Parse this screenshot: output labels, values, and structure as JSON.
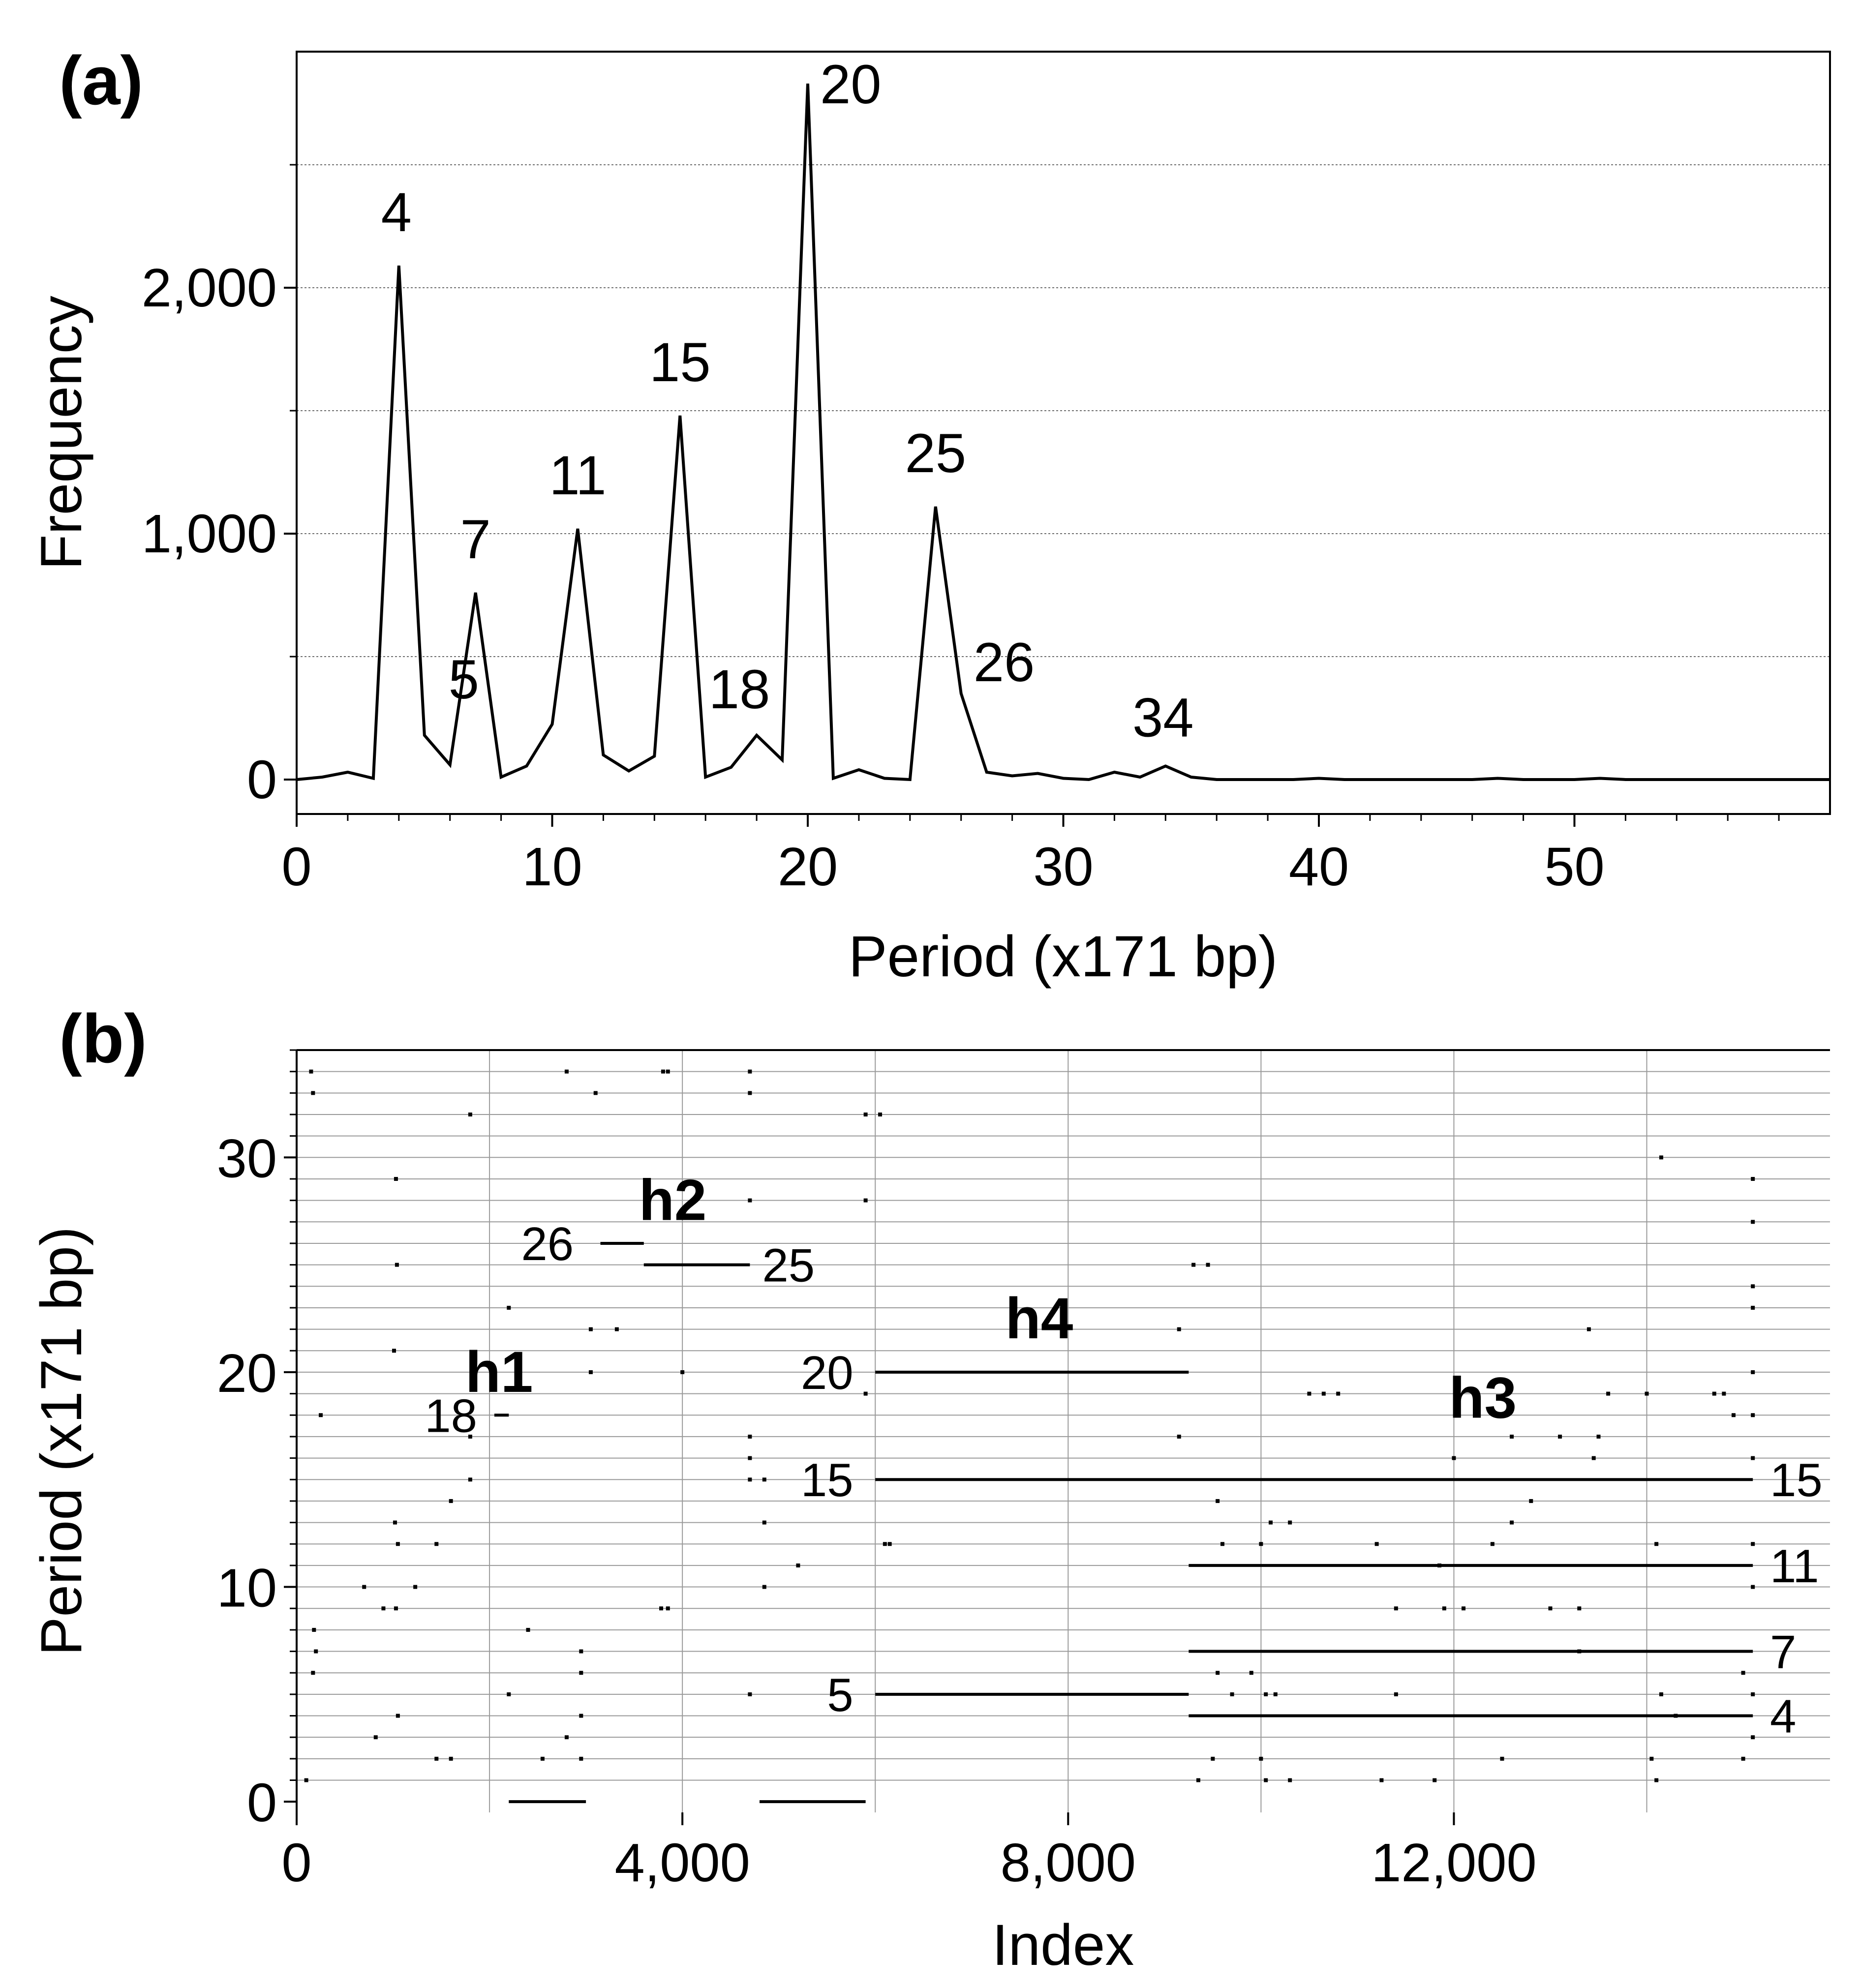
{
  "chart_data": [
    {
      "type": "line",
      "panel_label": "(a)",
      "xlabel": "Period (x171 bp)",
      "ylabel": "Frequency",
      "xlim": [
        0,
        60
      ],
      "ylim": [
        -140,
        2960
      ],
      "xticks": [
        0,
        10,
        20,
        30,
        40,
        50
      ],
      "xtick_labels": [
        "0",
        "10",
        "20",
        "30",
        "40",
        "50"
      ],
      "yticks": [
        0,
        1000,
        2000
      ],
      "ytick_labels": [
        "0",
        "1,000",
        "2,000"
      ],
      "gridlines_y": [
        500,
        1000,
        1500,
        2000,
        2500
      ],
      "x": [
        0,
        1,
        2,
        3,
        4,
        5,
        6,
        7,
        8,
        9,
        10,
        11,
        12,
        13,
        14,
        15,
        16,
        17,
        18,
        19,
        20,
        21,
        22,
        23,
        24,
        25,
        26,
        27,
        28,
        29,
        30,
        31,
        32,
        33,
        34,
        35,
        36,
        37,
        38,
        39,
        40,
        41,
        42,
        43,
        44,
        45,
        46,
        47,
        48,
        49,
        50,
        51,
        52,
        53,
        54,
        55,
        56,
        57,
        58,
        59,
        60
      ],
      "values": [
        0,
        10,
        30,
        5,
        2090,
        180,
        60,
        760,
        10,
        55,
        225,
        1020,
        100,
        35,
        95,
        1480,
        10,
        50,
        180,
        80,
        2830,
        5,
        40,
        5,
        0,
        1110,
        350,
        30,
        15,
        25,
        5,
        0,
        30,
        10,
        55,
        10,
        0,
        0,
        0,
        0,
        5,
        0,
        0,
        0,
        0,
        0,
        0,
        5,
        0,
        0,
        0,
        5,
        0,
        0,
        0,
        0,
        0,
        0,
        0,
        0,
        0
      ],
      "peak_labels": [
        {
          "x": 4,
          "y": 2090,
          "text": "4"
        },
        {
          "x": 5,
          "y": 180,
          "text": "5"
        },
        {
          "x": 7,
          "y": 760,
          "text": "7"
        },
        {
          "x": 11,
          "y": 1020,
          "text": "11"
        },
        {
          "x": 15,
          "y": 1480,
          "text": "15"
        },
        {
          "x": 18,
          "y": 180,
          "text": "18"
        },
        {
          "x": 20,
          "y": 2830,
          "text": "20"
        },
        {
          "x": 25,
          "y": 1110,
          "text": "25"
        },
        {
          "x": 26,
          "y": 350,
          "text": "26"
        },
        {
          "x": 34,
          "y": 55,
          "text": "34"
        }
      ]
    },
    {
      "type": "scatter",
      "panel_label": "(b)",
      "xlabel": "Index",
      "ylabel": "Period (x171 bp)",
      "xlim": [
        0,
        15900
      ],
      "ylim": [
        -0.5,
        35
      ],
      "xticks": [
        0,
        4000,
        8000,
        12000
      ],
      "xtick_labels": [
        "0",
        "4,000",
        "8,000",
        "12,000"
      ],
      "yticks": [
        0,
        10,
        20,
        30
      ],
      "ytick_labels": [
        "0",
        "10",
        "20",
        "30"
      ],
      "vertical_gridlines_x": [
        2000,
        4000,
        6000,
        8000,
        10000,
        12000,
        14000
      ],
      "horizontal_gridlines_y": [
        1,
        2,
        3,
        4,
        5,
        6,
        7,
        8,
        9,
        10,
        11,
        12,
        13,
        14,
        15,
        16,
        17,
        18,
        19,
        20,
        21,
        22,
        23,
        24,
        25,
        26,
        27,
        28,
        29,
        30,
        31,
        32,
        33,
        34,
        35
      ],
      "segments": [
        {
          "period": 20,
          "x_start": 6000,
          "x_end": 9250
        },
        {
          "period": 15,
          "x_start": 6000,
          "x_end": 15100
        },
        {
          "period": 5,
          "x_start": 6000,
          "x_end": 9250
        },
        {
          "period": 11,
          "x_start": 9250,
          "x_end": 15100
        },
        {
          "period": 7,
          "x_start": 9250,
          "x_end": 15100
        },
        {
          "period": 4,
          "x_start": 9250,
          "x_end": 15100
        },
        {
          "period": 0,
          "x_start": 2200,
          "x_end": 3000
        },
        {
          "period": 0,
          "x_start": 4800,
          "x_end": 5900
        },
        {
          "period": 25,
          "x_start": 3600,
          "x_end": 4700
        },
        {
          "period": 26,
          "x_start": 3150,
          "x_end": 3600
        },
        {
          "period": 18,
          "x_start": 2050,
          "x_end": 2200
        }
      ],
      "row_labels": [
        {
          "period": 26,
          "x": 3000,
          "text": "26",
          "side": "left"
        },
        {
          "period": 25,
          "x": 4700,
          "text": "25",
          "side": "right"
        },
        {
          "period": 18,
          "x": 2000,
          "text": "18",
          "side": "left"
        },
        {
          "period": 20,
          "x": 5900,
          "text": "20",
          "side": "left"
        },
        {
          "period": 15,
          "x": 5900,
          "text": "15",
          "side": "left"
        },
        {
          "period": 5,
          "x": 5900,
          "text": "5",
          "side": "left"
        },
        {
          "period": 15,
          "x": 15150,
          "text": "15",
          "side": "right"
        },
        {
          "period": 11,
          "x": 15150,
          "text": "11",
          "side": "right"
        },
        {
          "period": 7,
          "x": 15150,
          "text": "7",
          "side": "right"
        },
        {
          "period": 4,
          "x": 15150,
          "text": "4",
          "side": "right"
        }
      ],
      "region_labels": [
        {
          "text": "h1",
          "x": 2100,
          "y": 20
        },
        {
          "text": "h2",
          "x": 3900,
          "y": 28
        },
        {
          "text": "h4",
          "x": 7700,
          "y": 22.5
        },
        {
          "text": "h3",
          "x": 12300,
          "y": 18.8
        }
      ],
      "scatter_points": [
        [
          150,
          34
        ],
        [
          170,
          33
        ],
        [
          180,
          8
        ],
        [
          200,
          7
        ],
        [
          170,
          6
        ],
        [
          250,
          18
        ],
        [
          100,
          1
        ],
        [
          1030,
          29
        ],
        [
          1040,
          25
        ],
        [
          1010,
          21
        ],
        [
          1020,
          13
        ],
        [
          1050,
          12
        ],
        [
          1030,
          9
        ],
        [
          1050,
          4
        ],
        [
          900,
          9
        ],
        [
          820,
          3
        ],
        [
          700,
          10
        ],
        [
          1230,
          10
        ],
        [
          1450,
          12
        ],
        [
          1450,
          2
        ],
        [
          1600,
          2
        ],
        [
          1600,
          14
        ],
        [
          1800,
          32
        ],
        [
          1800,
          15
        ],
        [
          1800,
          17
        ],
        [
          2200,
          23
        ],
        [
          2200,
          5
        ],
        [
          2400,
          8
        ],
        [
          2550,
          2
        ],
        [
          2800,
          3
        ],
        [
          2950,
          7
        ],
        [
          2950,
          6
        ],
        [
          2950,
          4
        ],
        [
          2950,
          2
        ],
        [
          2800,
          34
        ],
        [
          3050,
          20
        ],
        [
          3050,
          22
        ],
        [
          3100,
          33
        ],
        [
          3320,
          22
        ],
        [
          3800,
          34
        ],
        [
          3850,
          34
        ],
        [
          3780,
          9
        ],
        [
          3850,
          9
        ],
        [
          4000,
          20
        ],
        [
          4700,
          34
        ],
        [
          4700,
          33
        ],
        [
          4700,
          28
        ],
        [
          4700,
          17
        ],
        [
          4700,
          16
        ],
        [
          4700,
          15
        ],
        [
          4700,
          5
        ],
        [
          4850,
          15
        ],
        [
          4850,
          10
        ],
        [
          4850,
          13
        ],
        [
          5200,
          11
        ],
        [
          5900,
          28
        ],
        [
          5900,
          19
        ],
        [
          5900,
          32
        ],
        [
          6050,
          32
        ],
        [
          6100,
          12
        ],
        [
          6150,
          12
        ],
        [
          9150,
          22
        ],
        [
          9150,
          17
        ],
        [
          9300,
          25
        ],
        [
          9350,
          1
        ],
        [
          9450,
          25
        ],
        [
          9500,
          2
        ],
        [
          9550,
          6
        ],
        [
          9600,
          12
        ],
        [
          9550,
          14
        ],
        [
          9700,
          5
        ],
        [
          9900,
          6
        ],
        [
          10000,
          2
        ],
        [
          10050,
          5
        ],
        [
          10000,
          12
        ],
        [
          10150,
          5
        ],
        [
          10050,
          1
        ],
        [
          10100,
          13
        ],
        [
          10300,
          1
        ],
        [
          10300,
          13
        ],
        [
          10500,
          19
        ],
        [
          10650,
          19
        ],
        [
          10800,
          19
        ],
        [
          11250,
          1
        ],
        [
          11200,
          12
        ],
        [
          11400,
          5
        ],
        [
          11400,
          9
        ],
        [
          11800,
          1
        ],
        [
          11850,
          11
        ],
        [
          11900,
          9
        ],
        [
          12000,
          16
        ],
        [
          12100,
          9
        ],
        [
          12400,
          12
        ],
        [
          12500,
          2
        ],
        [
          12600,
          17
        ],
        [
          12600,
          13
        ],
        [
          12800,
          14
        ],
        [
          13000,
          9
        ],
        [
          13100,
          17
        ],
        [
          13300,
          7
        ],
        [
          13300,
          9
        ],
        [
          13400,
          22
        ],
        [
          13450,
          16
        ],
        [
          13500,
          17
        ],
        [
          13600,
          19
        ],
        [
          14000,
          19
        ],
        [
          14050,
          2
        ],
        [
          14100,
          1
        ],
        [
          14100,
          12
        ],
        [
          14150,
          5
        ],
        [
          14150,
          30
        ],
        [
          14300,
          4
        ],
        [
          14700,
          19
        ],
        [
          14800,
          19
        ],
        [
          14900,
          18
        ],
        [
          15000,
          6
        ],
        [
          15000,
          2
        ],
        [
          15100,
          29
        ],
        [
          15100,
          27
        ],
        [
          15100,
          24
        ],
        [
          15100,
          23
        ],
        [
          15100,
          20
        ],
        [
          15100,
          18
        ],
        [
          15100,
          16
        ],
        [
          15100,
          12
        ],
        [
          15100,
          10
        ],
        [
          15100,
          5
        ],
        [
          15100,
          3
        ]
      ]
    }
  ]
}
